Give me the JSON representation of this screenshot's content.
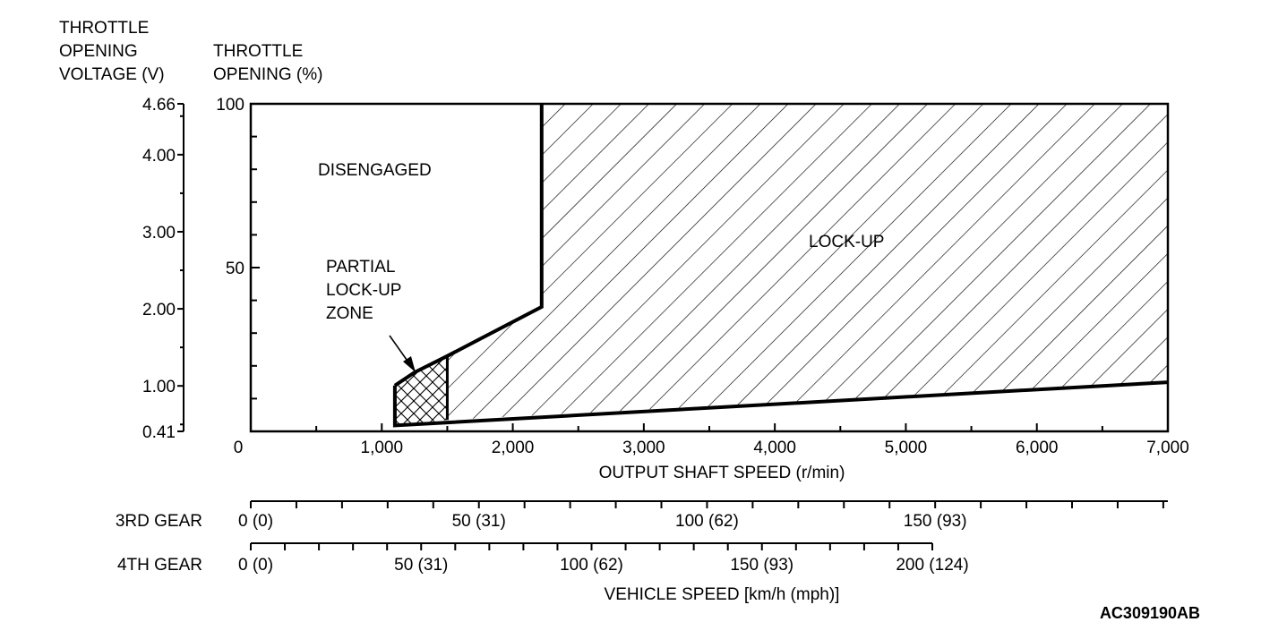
{
  "figure_id": "AC309190AB",
  "chart_data": {
    "type": "area",
    "y_left_title": [
      "THROTTLE",
      "OPENING",
      "VOLTAGE (V)"
    ],
    "y_right_title": [
      "THROTTLE",
      "OPENING (%)"
    ],
    "voltage_ticks": [
      "4.66",
      "4.00",
      "3.00",
      "2.00",
      "1.00",
      "0.41"
    ],
    "voltage_values": [
      4.66,
      4.0,
      3.0,
      2.0,
      1.0,
      0.41
    ],
    "opening_ticks": [
      "100",
      "50"
    ],
    "xlabel": "OUTPUT SHAFT SPEED (r/min)",
    "x_ticks": [
      "0",
      "1,000",
      "2,000",
      "3,000",
      "4,000",
      "5,000",
      "6,000",
      "7,000"
    ],
    "x_tick_values": [
      0,
      1000,
      2000,
      3000,
      4000,
      5000,
      6000,
      7000
    ],
    "xlim": [
      0,
      7000
    ],
    "ylim": [
      0,
      100
    ],
    "zones": [
      {
        "name": "LOCK-UP",
        "label_lines": [
          "LOCK-UP"
        ],
        "fill": "diagonal-hatch",
        "boundary": [
          [
            1500,
            3.5
          ],
          [
            7000,
            15
          ],
          [
            7000,
            100
          ],
          [
            2220,
            100
          ],
          [
            2220,
            38
          ],
          [
            1500,
            23
          ]
        ]
      },
      {
        "name": "PARTIAL LOCK-UP ZONE",
        "label_lines": [
          "PARTIAL",
          "LOCK-UP",
          "ZONE"
        ],
        "fill": "cross-hatch",
        "boundary": [
          [
            1100,
            1.8
          ],
          [
            1500,
            3.5
          ],
          [
            1500,
            23
          ],
          [
            1250,
            18
          ],
          [
            1100,
            14
          ]
        ]
      },
      {
        "name": "DISENGAGED",
        "label_lines": [
          "DISENGAGED"
        ],
        "fill": "none"
      }
    ],
    "vehicle_speed_axes": [
      {
        "label": "3RD GEAR",
        "tick_labels": [
          "0 (0)",
          "50 (31)",
          "100 (62)",
          "150 (93)"
        ],
        "label_speeds": [
          0,
          50,
          100,
          150
        ],
        "max_label_speed": 150,
        "max_speed": 201,
        "tick_step": 10
      },
      {
        "label": "4TH GEAR",
        "tick_labels": [
          "0 (0)",
          "50 (31)",
          "100 (62)",
          "150 (93)",
          "200 (124)"
        ],
        "label_speeds": [
          0,
          50,
          100,
          150,
          200
        ],
        "max_label_speed": 200,
        "max_speed": 200,
        "tick_step": 10
      }
    ],
    "vehicle_speed_label": "VEHICLE SPEED [km/h (mph)]",
    "colors": {
      "line": "#000000",
      "background": "#ffffff"
    }
  }
}
